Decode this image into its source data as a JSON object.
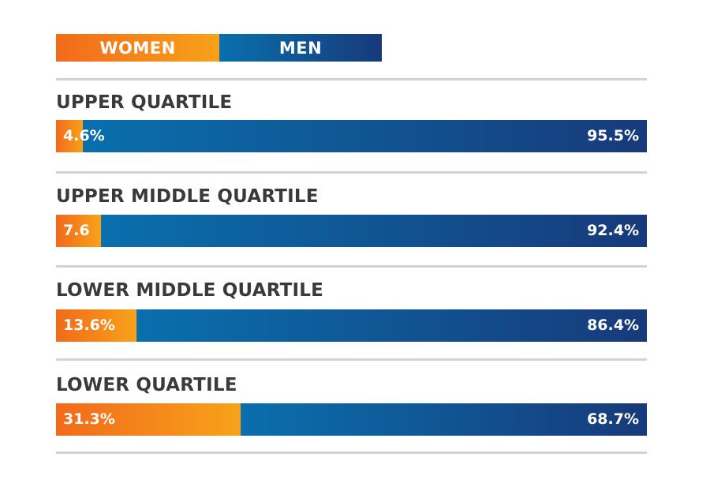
{
  "chart_data": {
    "type": "bar",
    "orientation": "horizontal",
    "stacked": "100%",
    "legend_placement": "top-left",
    "legend": [
      "WOMEN",
      "MEN"
    ],
    "categories": [
      "UPPER QUARTILE",
      "UPPER MIDDLE QUARTILE",
      "LOWER MIDDLE QUARTILE",
      "LOWER QUARTILE"
    ],
    "series": [
      {
        "name": "WOMEN",
        "values": [
          4.6,
          7.6,
          13.6,
          31.3
        ],
        "labels": [
          "4.6%",
          "7.6",
          "13.6%",
          "31.3%"
        ]
      },
      {
        "name": "MEN",
        "values": [
          95.5,
          92.4,
          86.4,
          68.7
        ],
        "labels": [
          "95.5%",
          "92.4%",
          "86.4%",
          "68.7%"
        ]
      }
    ],
    "colors": {
      "women_start": "#f26a1b",
      "women_end": "#f7a21a",
      "men_start": "#0a6fad",
      "men_end": "#173a7a",
      "divider": "#d3d3d3",
      "title_text": "#3a3a3a"
    }
  }
}
